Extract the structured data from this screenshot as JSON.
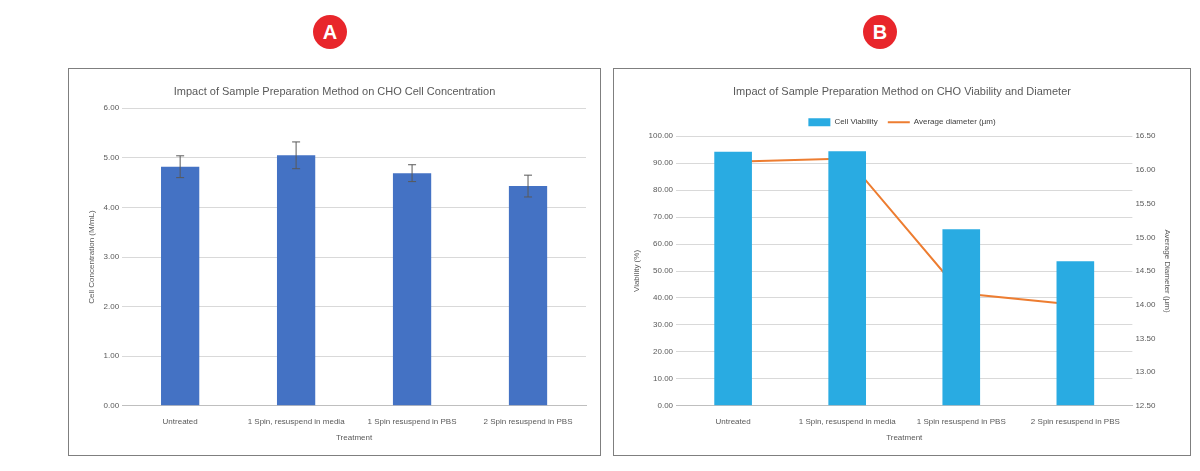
{
  "chart_data": [
    {
      "type": "bar",
      "annotation": "A",
      "title": "Impact of Sample Preparation Method on CHO Cell Concentration",
      "x_label": "Treatment",
      "y_label": "Cell Concentration (M/mL)",
      "categories": [
        "Untreated",
        "1 Spin, resuspend in media",
        "1 Spin resuspend in PBS",
        "2 Spin resuspend in PBS"
      ],
      "values": [
        4.82,
        5.05,
        4.69,
        4.43
      ],
      "errors": [
        0.22,
        0.27,
        0.17,
        0.22
      ],
      "color": "#4472c4",
      "ylim": [
        0,
        6
      ],
      "yticks": [
        {
          "value": 0,
          "label": "0.00"
        },
        {
          "value": 1,
          "label": "1.00"
        },
        {
          "value": 2,
          "label": "2.00"
        },
        {
          "value": 3,
          "label": "3.00"
        },
        {
          "value": 4,
          "label": "4.00"
        },
        {
          "value": 5,
          "label": "5.00"
        },
        {
          "value": 6,
          "label": "6.00"
        }
      ],
      "grid": true
    },
    {
      "type": "bar",
      "annotation": "B",
      "title": "Impact of Sample Preparation Method on CHO Viability and Diameter",
      "x_label": "Treatment",
      "y_label": "Viability (%)",
      "y2_label": "Average Diameter (µm)",
      "categories": [
        "Untreated",
        "1 Spin, resuspend in media",
        "1 Spin resuspend in PBS",
        "2 Spin resuspend in PBS"
      ],
      "series": [
        {
          "name": "Cell Viability",
          "type": "bar",
          "color": "#29abe2",
          "values": [
            94.2,
            94.4,
            65.5,
            53.6
          ]
        },
        {
          "name": "Average diameter (µm)",
          "type": "line",
          "color": "#ed7d31",
          "marker": "none",
          "axis": "y2",
          "values": [
            16.12,
            16.17,
            14.17,
            14.0
          ]
        }
      ],
      "legend": "top",
      "ylim": [
        0,
        100
      ],
      "yticks": [
        {
          "value": 0,
          "label": "0.00"
        },
        {
          "value": 10,
          "label": "10.00"
        },
        {
          "value": 20,
          "label": "20.00"
        },
        {
          "value": 30,
          "label": "30.00"
        },
        {
          "value": 40,
          "label": "40.00"
        },
        {
          "value": 50,
          "label": "50.00"
        },
        {
          "value": 60,
          "label": "60.00"
        },
        {
          "value": 70,
          "label": "70.00"
        },
        {
          "value": 80,
          "label": "80.00"
        },
        {
          "value": 90,
          "label": "90.00"
        },
        {
          "value": 100,
          "label": "100.00"
        }
      ],
      "y2lim": [
        12.5,
        16.5
      ],
      "y2ticks": [
        {
          "value": 12.5,
          "label": "12.50"
        },
        {
          "value": 13,
          "label": "13.00"
        },
        {
          "value": 13.5,
          "label": "13.50"
        },
        {
          "value": 14,
          "label": "14.00"
        },
        {
          "value": 14.5,
          "label": "14.50"
        },
        {
          "value": 15,
          "label": "15.00"
        },
        {
          "value": 15.5,
          "label": "15.50"
        },
        {
          "value": 16,
          "label": "16.00"
        },
        {
          "value": 16.5,
          "label": "16.50"
        }
      ],
      "grid": true
    }
  ]
}
